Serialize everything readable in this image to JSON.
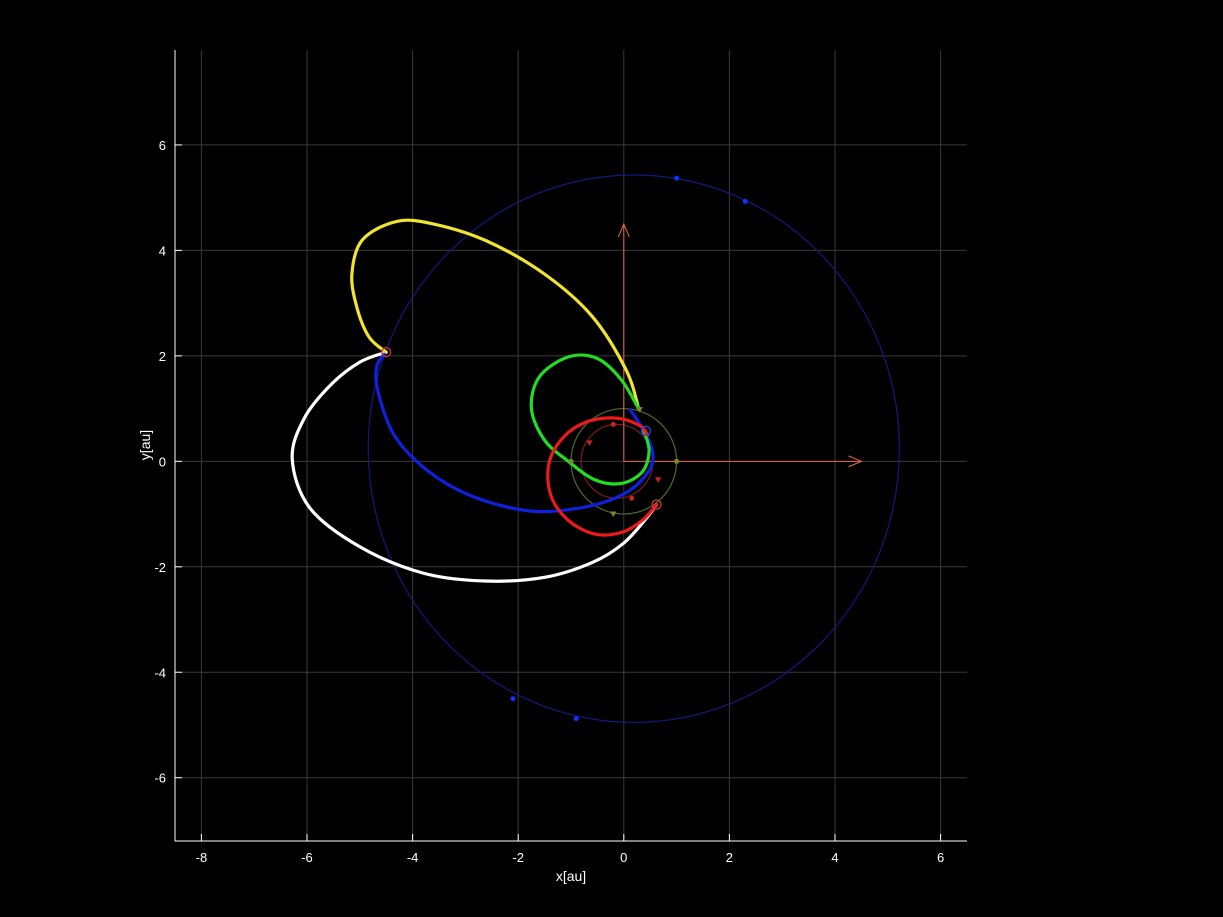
{
  "chart_data": {
    "type": "line",
    "title": "",
    "xlabel": "x[au]",
    "ylabel": "y[au]",
    "xlim": [
      -8.5,
      6.5
    ],
    "ylim": [
      -7.2,
      7.8
    ],
    "grid": true,
    "background": "#000000",
    "x_ticks": [
      -8,
      -6,
      -4,
      -2,
      0,
      2,
      4,
      6
    ],
    "y_ticks": [
      -6,
      -4,
      -2,
      0,
      2,
      4,
      6
    ],
    "x_tick_labels": [
      "-8",
      "-6",
      "-4",
      "-2",
      "0",
      "2",
      "4",
      "6"
    ],
    "y_tick_labels": [
      "-6",
      "-4",
      "-2",
      "0",
      "2",
      "4",
      "6"
    ],
    "axes_arrows": [
      {
        "from": [
          0,
          0
        ],
        "to": [
          4.5,
          0
        ],
        "color": "#e8674a"
      },
      {
        "from": [
          0,
          0
        ],
        "to": [
          0,
          4.5
        ],
        "color": "#e8674a"
      }
    ],
    "reference_orbits": [
      {
        "shape": "ellipse",
        "cx": 0.19,
        "cy": 0.24,
        "rx": 5.03,
        "ry": 5.19,
        "color": "#101a80"
      },
      {
        "shape": "ellipse",
        "cx": 0.0,
        "cy": 0.0,
        "rx": 1.0,
        "ry": 1.0,
        "color": "#4f6b2c"
      },
      {
        "shape": "ellipse",
        "cx": -0.13,
        "cy": 0.0,
        "rx": 0.68,
        "ry": 0.7,
        "color": "#7a1c1c"
      }
    ],
    "series": [
      {
        "color": "#ffffff",
        "points": [
          [
            0.62,
            -0.82
          ],
          [
            0.45,
            -1.05
          ],
          [
            0.0,
            -1.55
          ],
          [
            -0.6,
            -1.92
          ],
          [
            -1.5,
            -2.2
          ],
          [
            -2.62,
            -2.27
          ],
          [
            -3.8,
            -2.12
          ],
          [
            -5.0,
            -1.62
          ],
          [
            -5.95,
            -0.88
          ],
          [
            -6.28,
            0.05
          ],
          [
            -6.05,
            0.82
          ],
          [
            -5.55,
            1.45
          ],
          [
            -5.0,
            1.88
          ],
          [
            -4.5,
            2.07
          ]
        ]
      },
      {
        "color": "#1020e0",
        "points": [
          [
            -4.5,
            2.07
          ],
          [
            -4.68,
            1.8
          ],
          [
            -4.65,
            1.3
          ],
          [
            -4.35,
            0.5
          ],
          [
            -3.75,
            -0.15
          ],
          [
            -2.9,
            -0.65
          ],
          [
            -1.8,
            -0.94
          ],
          [
            -0.8,
            -0.88
          ],
          [
            0.0,
            -0.62
          ],
          [
            0.45,
            -0.22
          ],
          [
            0.55,
            0.15
          ],
          [
            0.38,
            0.58
          ],
          [
            0.12,
            0.98
          ]
        ]
      },
      {
        "color": "#f0e430",
        "points": [
          [
            -4.5,
            2.07
          ],
          [
            -4.82,
            2.35
          ],
          [
            -5.05,
            2.9
          ],
          [
            -5.15,
            3.55
          ],
          [
            -4.95,
            4.2
          ],
          [
            -4.3,
            4.55
          ],
          [
            -3.6,
            4.5
          ],
          [
            -2.6,
            4.18
          ],
          [
            -1.5,
            3.55
          ],
          [
            -0.6,
            2.75
          ],
          [
            0.05,
            1.72
          ],
          [
            0.28,
            1.0
          ]
        ]
      },
      {
        "color": "#22dd22",
        "points": [
          [
            0.28,
            1.0
          ],
          [
            -0.05,
            1.55
          ],
          [
            -0.5,
            1.95
          ],
          [
            -1.05,
            1.98
          ],
          [
            -1.6,
            1.6
          ],
          [
            -1.75,
            1.0
          ],
          [
            -1.5,
            0.4
          ],
          [
            -1.05,
            0.0
          ],
          [
            -0.55,
            -0.35
          ],
          [
            -0.05,
            -0.42
          ],
          [
            0.35,
            -0.2
          ],
          [
            0.48,
            0.2
          ],
          [
            0.38,
            0.58
          ]
        ]
      },
      {
        "color": "#ee1a1a",
        "points": [
          [
            0.62,
            -0.82
          ],
          [
            0.35,
            -1.12
          ],
          [
            -0.05,
            -1.35
          ],
          [
            -0.55,
            -1.38
          ],
          [
            -1.05,
            -1.12
          ],
          [
            -1.38,
            -0.65
          ],
          [
            -1.42,
            -0.05
          ],
          [
            -1.15,
            0.45
          ],
          [
            -0.7,
            0.75
          ],
          [
            -0.15,
            0.82
          ],
          [
            0.3,
            0.68
          ],
          [
            0.45,
            0.5
          ]
        ]
      }
    ],
    "markers": [
      {
        "x": -4.5,
        "y": 2.07,
        "color": "#cc3333",
        "shape": "ring"
      },
      {
        "x": 0.62,
        "y": -0.82,
        "color": "#cc3333",
        "shape": "ring"
      },
      {
        "x": 0.42,
        "y": 0.58,
        "color": "#2244ee",
        "shape": "ring"
      },
      {
        "x": 1.0,
        "y": 5.37,
        "color": "#1133ff",
        "shape": "dot"
      },
      {
        "x": 2.3,
        "y": 4.93,
        "color": "#1133ff",
        "shape": "dot"
      },
      {
        "x": -0.9,
        "y": -4.88,
        "color": "#1133ff",
        "shape": "dot"
      },
      {
        "x": -2.1,
        "y": -4.5,
        "color": "#1133ff",
        "shape": "dot"
      },
      {
        "x": -0.2,
        "y": 0.7,
        "color": "#cc2222",
        "shape": "dot"
      },
      {
        "x": 0.15,
        "y": -0.7,
        "color": "#cc2222",
        "shape": "dot"
      },
      {
        "x": -0.65,
        "y": 0.35,
        "color": "#cc2222",
        "shape": "tri"
      },
      {
        "x": 0.65,
        "y": -0.35,
        "color": "#cc2222",
        "shape": "tri"
      },
      {
        "x": 1.0,
        "y": 0.0,
        "color": "#7a8a30",
        "shape": "dot"
      },
      {
        "x": -1.0,
        "y": 0.0,
        "color": "#7a8a30",
        "shape": "dot"
      },
      {
        "x": -0.2,
        "y": -1.0,
        "color": "#7a8a30",
        "shape": "tri"
      },
      {
        "x": 0.3,
        "y": 0.98,
        "color": "#7a8a30",
        "shape": "tri"
      }
    ]
  }
}
